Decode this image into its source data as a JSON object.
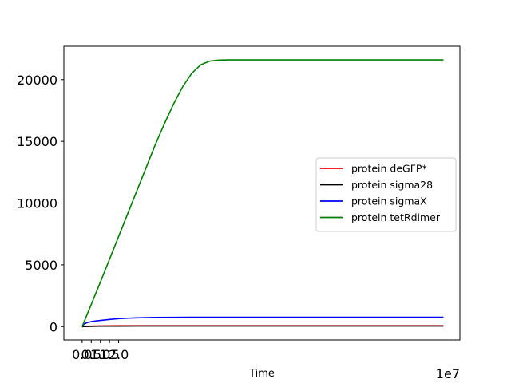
{
  "chart_data": {
    "type": "line",
    "xlabel": "Time",
    "ylabel": "",
    "x_offset_label": "1e7",
    "xlim": [
      -1.0,
      20.7
    ],
    "ylim": [
      -1080,
      22700
    ],
    "x_ticks": [
      0.0,
      0.5,
      1.0,
      1.5,
      2.0
    ],
    "x_tick_labels": [
      "0.0",
      "0.5",
      "1.0",
      "1.5",
      "2.0"
    ],
    "y_ticks": [
      0,
      5000,
      10000,
      15000,
      20000
    ],
    "y_tick_labels": [
      "0",
      "5000",
      "10000",
      "15000",
      "20000"
    ],
    "grid": false,
    "legend_position": "center-right",
    "series": [
      {
        "name": "protein deGFP*",
        "color": "#ff0000",
        "x": [
          0.0,
          0.1,
          0.3,
          0.5,
          0.7,
          1.0,
          1.5,
          2.0,
          3.0,
          5.0,
          8.0,
          12.0,
          16.0,
          19.8
        ],
        "y": [
          0,
          10,
          25,
          38,
          48,
          58,
          66,
          70,
          73,
          75,
          75,
          75,
          75,
          75
        ]
      },
      {
        "name": "protein sigma28",
        "color": "#000000",
        "x": [
          0.0,
          0.1,
          0.3,
          0.5,
          0.7,
          1.0,
          1.5,
          2.0,
          3.0,
          5.0,
          8.0,
          12.0,
          16.0,
          19.8
        ],
        "y": [
          0,
          6,
          16,
          24,
          30,
          36,
          40,
          42,
          44,
          45,
          45,
          45,
          45,
          45
        ]
      },
      {
        "name": "protein sigmaX",
        "color": "#0000ff",
        "x": [
          0.0,
          0.1,
          0.3,
          0.6,
          1.0,
          1.5,
          2.0,
          2.5,
          3.0,
          4.0,
          5.0,
          6.0,
          8.0,
          10.0,
          14.0,
          19.8
        ],
        "y": [
          0,
          200,
          340,
          430,
          500,
          580,
          640,
          680,
          710,
          740,
          750,
          755,
          760,
          760,
          760,
          760
        ]
      },
      {
        "name": "protein tetRdimer",
        "color": "#008000",
        "x": [
          0.0,
          0.5,
          1.0,
          1.5,
          2.0,
          2.5,
          3.0,
          3.5,
          4.0,
          4.5,
          5.0,
          5.5,
          6.0,
          6.5,
          7.0,
          7.5,
          8.0,
          9.0,
          10.0,
          12.0,
          14.0,
          16.0,
          18.0,
          19.8
        ],
        "y": [
          0,
          1800,
          3600,
          5450,
          7300,
          9150,
          11000,
          12850,
          14700,
          16400,
          18000,
          19400,
          20500,
          21200,
          21500,
          21580,
          21600,
          21600,
          21600,
          21600,
          21600,
          21600,
          21600,
          21600
        ]
      }
    ]
  }
}
